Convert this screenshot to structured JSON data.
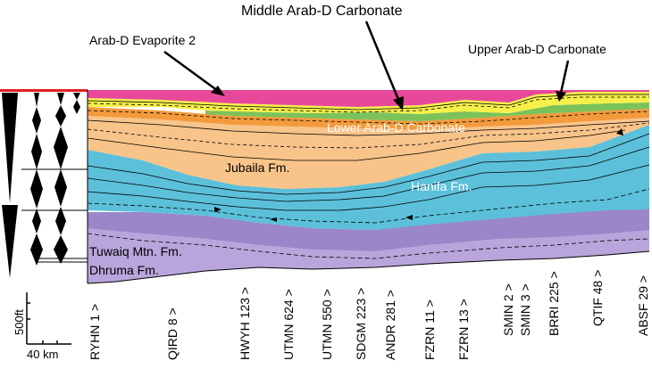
{
  "titles": {
    "middle_arab_d": "Middle Arab-D  Carbonate",
    "arab_d_evaporite": "Arab-D Evaporite 2",
    "upper_arab_d": "Upper Arab-D Carbonate",
    "lower_arab_d": "Lower Arab-D Carbonate"
  },
  "formations": {
    "jubaila": "Jubaila Fm.",
    "hanifa": "Hanifa Fm.",
    "tuwaiq": "Tuwaiq Mtn. Fm.",
    "dhruma": "Dhruma Fm."
  },
  "scale": {
    "vertical": "500ft",
    "horizontal": "40 km"
  },
  "wells": [
    "RYHN 1 >",
    "QIRD 8 >",
    "HWYH 123 >",
    "UTMN 624 >",
    "UTMN 550 >",
    "SDGM 223 >",
    "ANDR 281 >",
    "FZRN 11 >",
    "FZRN 13 >",
    "SMIN 2 >",
    "SMIN 3 >",
    "BRRI 225 >",
    "QTIF 48 >",
    "ABSF 29 >"
  ],
  "colors": {
    "evaporite": "#e8489a",
    "upper_carbonate": "#f5f04a",
    "green_band": "#7cc25a",
    "orange_band": "#f39a3c",
    "jubaila": "#f8c48a",
    "hanifa": "#5cc0da",
    "tuwaiq": "#9a86c8",
    "dhruma": "#b9a5dc",
    "red_marker": "#e02020"
  }
}
